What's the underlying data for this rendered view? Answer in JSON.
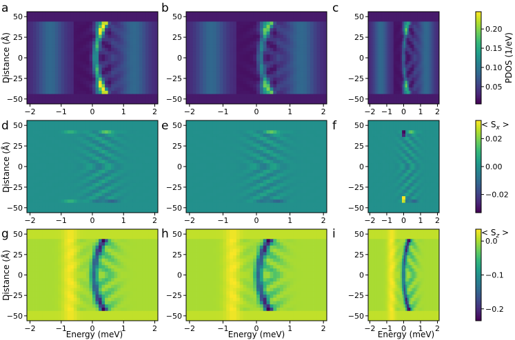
{
  "figure": {
    "x_axis_label": "Energy (meV)",
    "y_axis_label": "Distance (Å)",
    "x_ticks": [
      -2,
      -1,
      0,
      1,
      2
    ],
    "y_ticks": [
      50,
      25,
      0,
      -25,
      -50
    ],
    "xlim": [
      -2.1,
      2.1
    ],
    "ylim": [
      -56,
      56
    ]
  },
  "chart_data": [
    {
      "type": "heatmap",
      "panel": "a",
      "quantity": "pdos",
      "variant": 0
    },
    {
      "type": "heatmap",
      "panel": "b",
      "quantity": "pdos",
      "variant": 1
    },
    {
      "type": "heatmap",
      "panel": "c",
      "quantity": "pdos",
      "variant": 2
    },
    {
      "type": "heatmap",
      "panel": "d",
      "quantity": "sx",
      "variant": 0
    },
    {
      "type": "heatmap",
      "panel": "e",
      "quantity": "sx",
      "variant": 1
    },
    {
      "type": "heatmap",
      "panel": "f",
      "quantity": "sx",
      "variant": 2
    },
    {
      "type": "heatmap",
      "panel": "g",
      "quantity": "sz",
      "variant": 0
    },
    {
      "type": "heatmap",
      "panel": "h",
      "quantity": "sz",
      "variant": 1
    },
    {
      "type": "heatmap",
      "panel": "i",
      "quantity": "sz",
      "variant": 2
    }
  ],
  "colorbars": [
    {
      "quantity": "pdos",
      "label": "PDOS (1/eV)",
      "ticks": [
        "0.20",
        "0.15",
        "0.10",
        "0.05"
      ],
      "tick_values": [
        0.2,
        0.15,
        0.1,
        0.05
      ],
      "range": [
        0.005,
        0.245
      ]
    },
    {
      "quantity": "sx",
      "label": "< S_x >",
      "label_pre": "< S",
      "label_sub": "x",
      "label_post": " >",
      "ticks": [
        "0.02",
        "0.00",
        "−0.02"
      ],
      "tick_values": [
        0.02,
        0.0,
        -0.02
      ],
      "range": [
        -0.033,
        0.033
      ]
    },
    {
      "quantity": "sz",
      "label": "< S_z >",
      "label_pre": "< S",
      "label_sub": "z",
      "label_post": " >",
      "ticks": [
        "0.0",
        "−0.1",
        "−0.2"
      ],
      "tick_values": [
        0.0,
        -0.1,
        -0.2
      ],
      "range": [
        -0.235,
        0.035
      ]
    }
  ],
  "colormap": "viridis",
  "colormap_stops": [
    "#440154",
    "#482878",
    "#3e4989",
    "#31688e",
    "#26828e",
    "#1f9e89",
    "#35b779",
    "#6ece58",
    "#b5de2b",
    "#fde725"
  ]
}
